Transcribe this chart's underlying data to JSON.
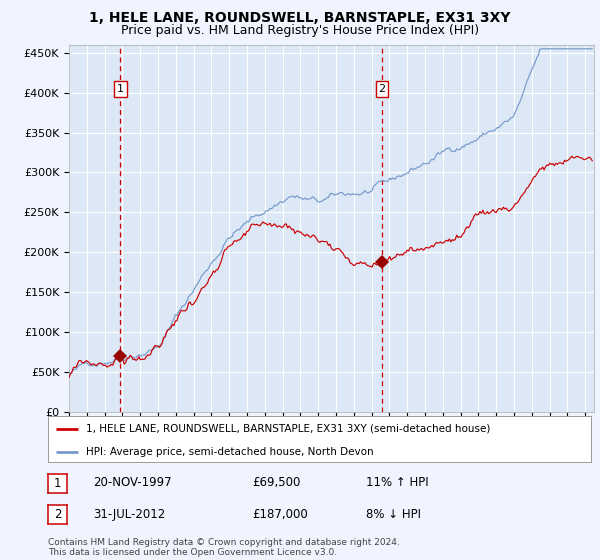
{
  "title": "1, HELE LANE, ROUNDSWELL, BARNSTAPLE, EX31 3XY",
  "subtitle": "Price paid vs. HM Land Registry's House Price Index (HPI)",
  "ylabel_ticks": [
    "£0",
    "£50K",
    "£100K",
    "£150K",
    "£200K",
    "£250K",
    "£300K",
    "£350K",
    "£400K",
    "£450K"
  ],
  "ytick_values": [
    0,
    50000,
    100000,
    150000,
    200000,
    250000,
    300000,
    350000,
    400000,
    450000
  ],
  "ylim": [
    0,
    460000
  ],
  "xlim_start": 1995.0,
  "xlim_end": 2024.5,
  "sale1_x": 1997.89,
  "sale1_y": 69500,
  "sale2_x": 2012.58,
  "sale2_y": 187000,
  "property_color": "#cc0000",
  "hpi_color": "#7799cc",
  "sale_marker_color": "#990000",
  "vline_color": "#cc0000",
  "plot_bg_color": "#dce8f5",
  "bg_color": "#f0f4ff",
  "grid_color": "#ffffff",
  "legend_property": "1, HELE LANE, ROUNDSWELL, BARNSTAPLE, EX31 3XY (semi-detached house)",
  "legend_hpi": "HPI: Average price, semi-detached house, North Devon",
  "table_row1": [
    "1",
    "20-NOV-1997",
    "£69,500",
    "11% ↑ HPI"
  ],
  "table_row2": [
    "2",
    "31-JUL-2012",
    "£187,000",
    "8% ↓ HPI"
  ],
  "footer": "Contains HM Land Registry data © Crown copyright and database right 2024.\nThis data is licensed under the Open Government Licence v3.0.",
  "title_fontsize": 10,
  "subtitle_fontsize": 9
}
